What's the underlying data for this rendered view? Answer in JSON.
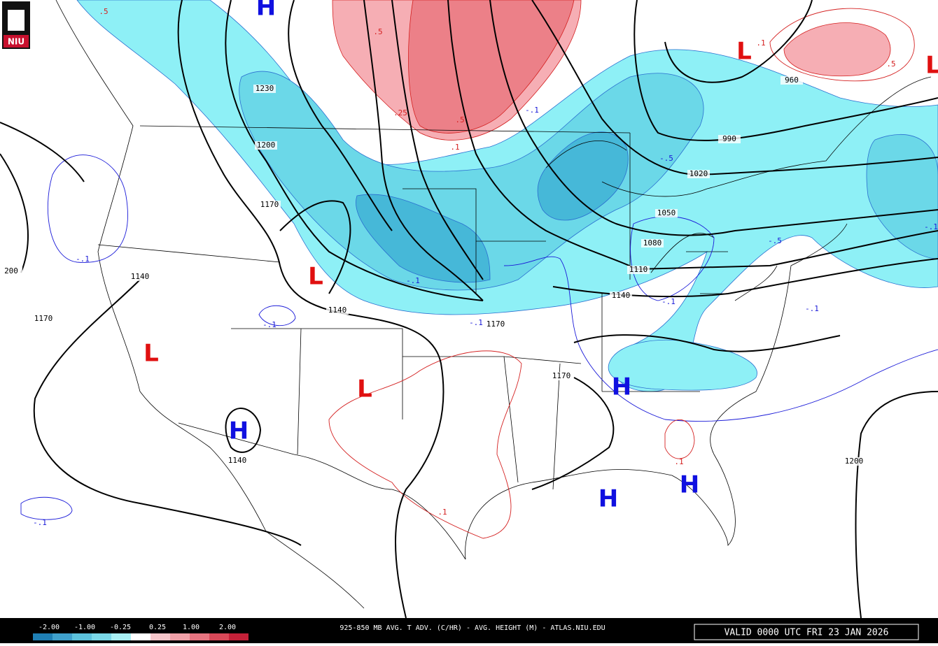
{
  "logo": "NIU",
  "title": "925-850 MB AVG. T ADV. (C/HR) - AVG. HEIGHT (M) - ATLAS.NIU.EDU",
  "valid": "VALID 0000 UTC FRI 23 JAN 2026",
  "legend": {
    "labels": [
      "-2.00",
      "-1.00",
      "-0.25",
      "0.25",
      "1.00",
      "2.00"
    ]
  },
  "pressure_centers": [
    "H",
    "L",
    "L",
    "L",
    "L",
    "L",
    "H",
    "H",
    "H",
    "H"
  ],
  "height_labels": [
    "1230",
    "1200",
    "1170",
    "1140",
    "1140",
    "1170",
    "1170",
    "1140",
    "1170",
    "1140",
    "1110",
    "1080",
    "1050",
    "1020",
    "990",
    "960",
    "1200",
    "200"
  ],
  "advection_labels": [
    ".5",
    ".5",
    ".25",
    ".5",
    ".1",
    "-.1",
    "-.5",
    "-.5",
    "-.1",
    "-.1",
    "-.1",
    "-.1",
    "-.1",
    "-.1",
    "-.1",
    ".1",
    ".1",
    ".1",
    ".5",
    "-.1"
  ]
}
